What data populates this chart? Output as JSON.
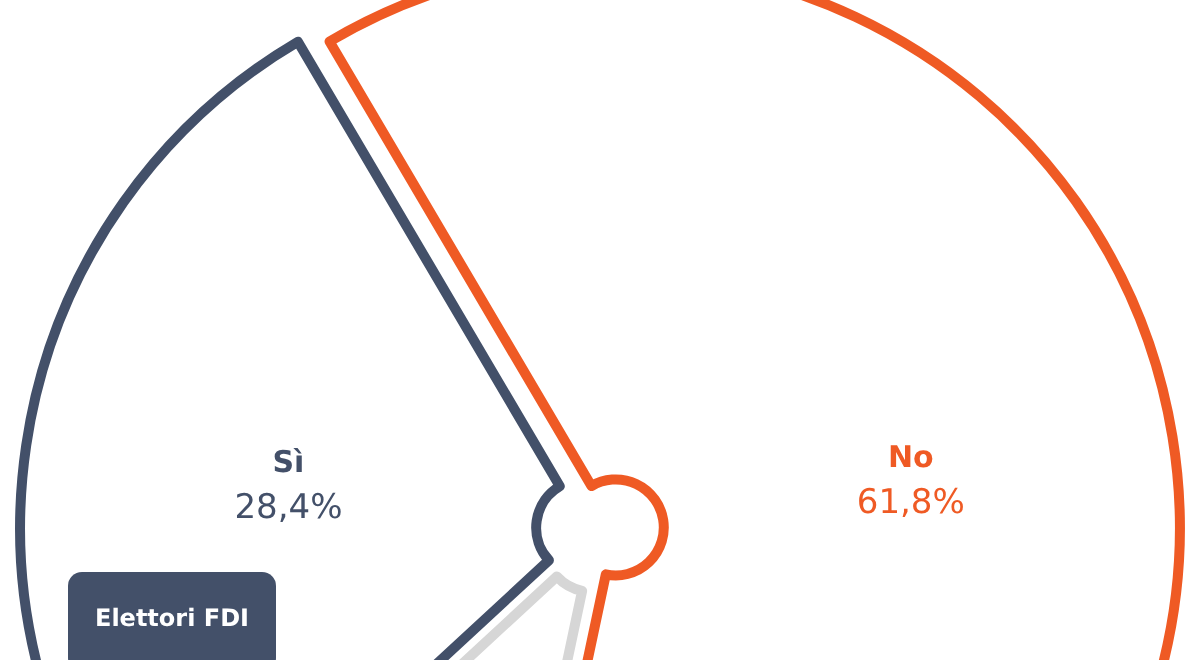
{
  "chart_data": {
    "type": "pie",
    "title": "Elettori FDI",
    "categories": [
      "No",
      null,
      "Sì"
    ],
    "values": [
      61.8,
      9.8,
      28.4
    ],
    "colors": [
      "#ef5a24",
      "#d6d6d6",
      "#435069"
    ],
    "value_labels": [
      "61,8%",
      null,
      "28,4%"
    ]
  }
}
